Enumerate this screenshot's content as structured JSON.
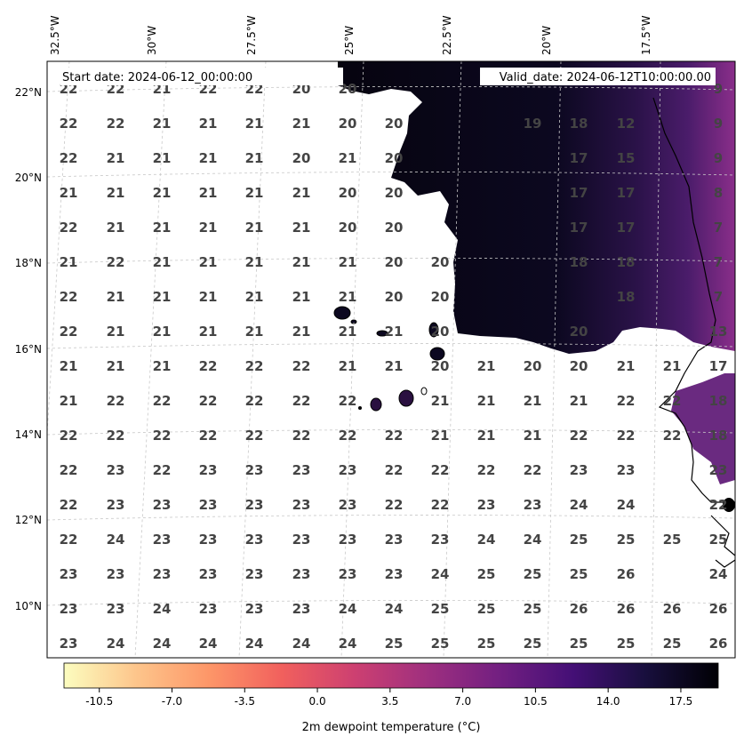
{
  "header": {
    "start_date": "Start date: 2024-06-12_00:00:00",
    "valid_date": "Valid_date: 2024-06-12T10:00:00.00"
  },
  "axes": {
    "lon_labels": [
      "32.5°W",
      "30°W",
      "27.5°W",
      "25°W",
      "22.5°W",
      "20°W",
      "17.5°W"
    ],
    "lat_labels": [
      "22°N",
      "20°N",
      "18°N",
      "16°N",
      "14°N",
      "12°N",
      "10°N"
    ]
  },
  "colorbar": {
    "label": "2m dewpoint temperature ($^\\circ$C)",
    "label_text": "2m dewpoint temperature (°C)",
    "ticks": [
      "-10.5",
      "-7.0",
      "-3.5",
      "0.0",
      "3.5",
      "7.0",
      "10.5",
      "14.0",
      "17.5"
    ],
    "colormap": "magma_r",
    "colors": [
      "#fcfdbf",
      "#fdc58b",
      "#fd9668",
      "#f1605d",
      "#cd4071",
      "#9e2f7f",
      "#721f81",
      "#440f76",
      "#180f3d",
      "#000004"
    ]
  },
  "grid_values": [
    [
      "22",
      "22",
      "21",
      "22",
      "22",
      "20",
      "20",
      "",
      "",
      "",
      "",
      "",
      "",
      "9"
    ],
    [
      "22",
      "22",
      "21",
      "21",
      "21",
      "21",
      "20",
      "20",
      "",
      "",
      "19",
      "18",
      "12",
      "9"
    ],
    [
      "22",
      "21",
      "21",
      "21",
      "21",
      "20",
      "21",
      "20",
      "",
      "",
      "",
      "17",
      "15",
      "9"
    ],
    [
      "21",
      "21",
      "21",
      "21",
      "21",
      "21",
      "20",
      "20",
      "",
      "",
      "",
      "17",
      "17",
      "8"
    ],
    [
      "22",
      "21",
      "21",
      "21",
      "21",
      "21",
      "20",
      "20",
      "",
      "",
      "",
      "17",
      "17",
      "7"
    ],
    [
      "21",
      "22",
      "21",
      "21",
      "21",
      "21",
      "21",
      "20",
      "20",
      "",
      "",
      "18",
      "18",
      "7"
    ],
    [
      "22",
      "21",
      "21",
      "21",
      "21",
      "21",
      "21",
      "20",
      "20",
      "",
      "",
      "",
      "18",
      "7"
    ],
    [
      "22",
      "21",
      "21",
      "21",
      "21",
      "21",
      "21",
      "21",
      "20",
      "",
      "",
      "20",
      "",
      "13"
    ],
    [
      "21",
      "21",
      "21",
      "22",
      "22",
      "22",
      "21",
      "21",
      "20",
      "21",
      "20",
      "20",
      "21",
      "21",
      "17"
    ],
    [
      "21",
      "22",
      "22",
      "22",
      "22",
      "22",
      "22",
      "",
      "21",
      "21",
      "21",
      "21",
      "22",
      "22",
      "18"
    ],
    [
      "22",
      "22",
      "22",
      "22",
      "22",
      "22",
      "22",
      "22",
      "21",
      "21",
      "21",
      "22",
      "22",
      "22",
      "18"
    ],
    [
      "22",
      "23",
      "22",
      "23",
      "23",
      "23",
      "23",
      "22",
      "22",
      "22",
      "22",
      "23",
      "23",
      "23"
    ],
    [
      "22",
      "23",
      "23",
      "23",
      "23",
      "23",
      "23",
      "22",
      "22",
      "23",
      "23",
      "24",
      "24",
      "22"
    ],
    [
      "22",
      "24",
      "23",
      "23",
      "23",
      "23",
      "23",
      "23",
      "23",
      "24",
      "24",
      "25",
      "25",
      "25",
      "25"
    ],
    [
      "23",
      "23",
      "23",
      "23",
      "23",
      "23",
      "23",
      "23",
      "24",
      "25",
      "25",
      "25",
      "26",
      "24"
    ],
    [
      "23",
      "23",
      "24",
      "23",
      "23",
      "23",
      "24",
      "24",
      "25",
      "25",
      "25",
      "26",
      "26",
      "26",
      "26"
    ],
    [
      "23",
      "24",
      "24",
      "24",
      "24",
      "24",
      "24",
      "25",
      "25",
      "25",
      "25",
      "25",
      "25",
      "25",
      "26"
    ]
  ]
}
